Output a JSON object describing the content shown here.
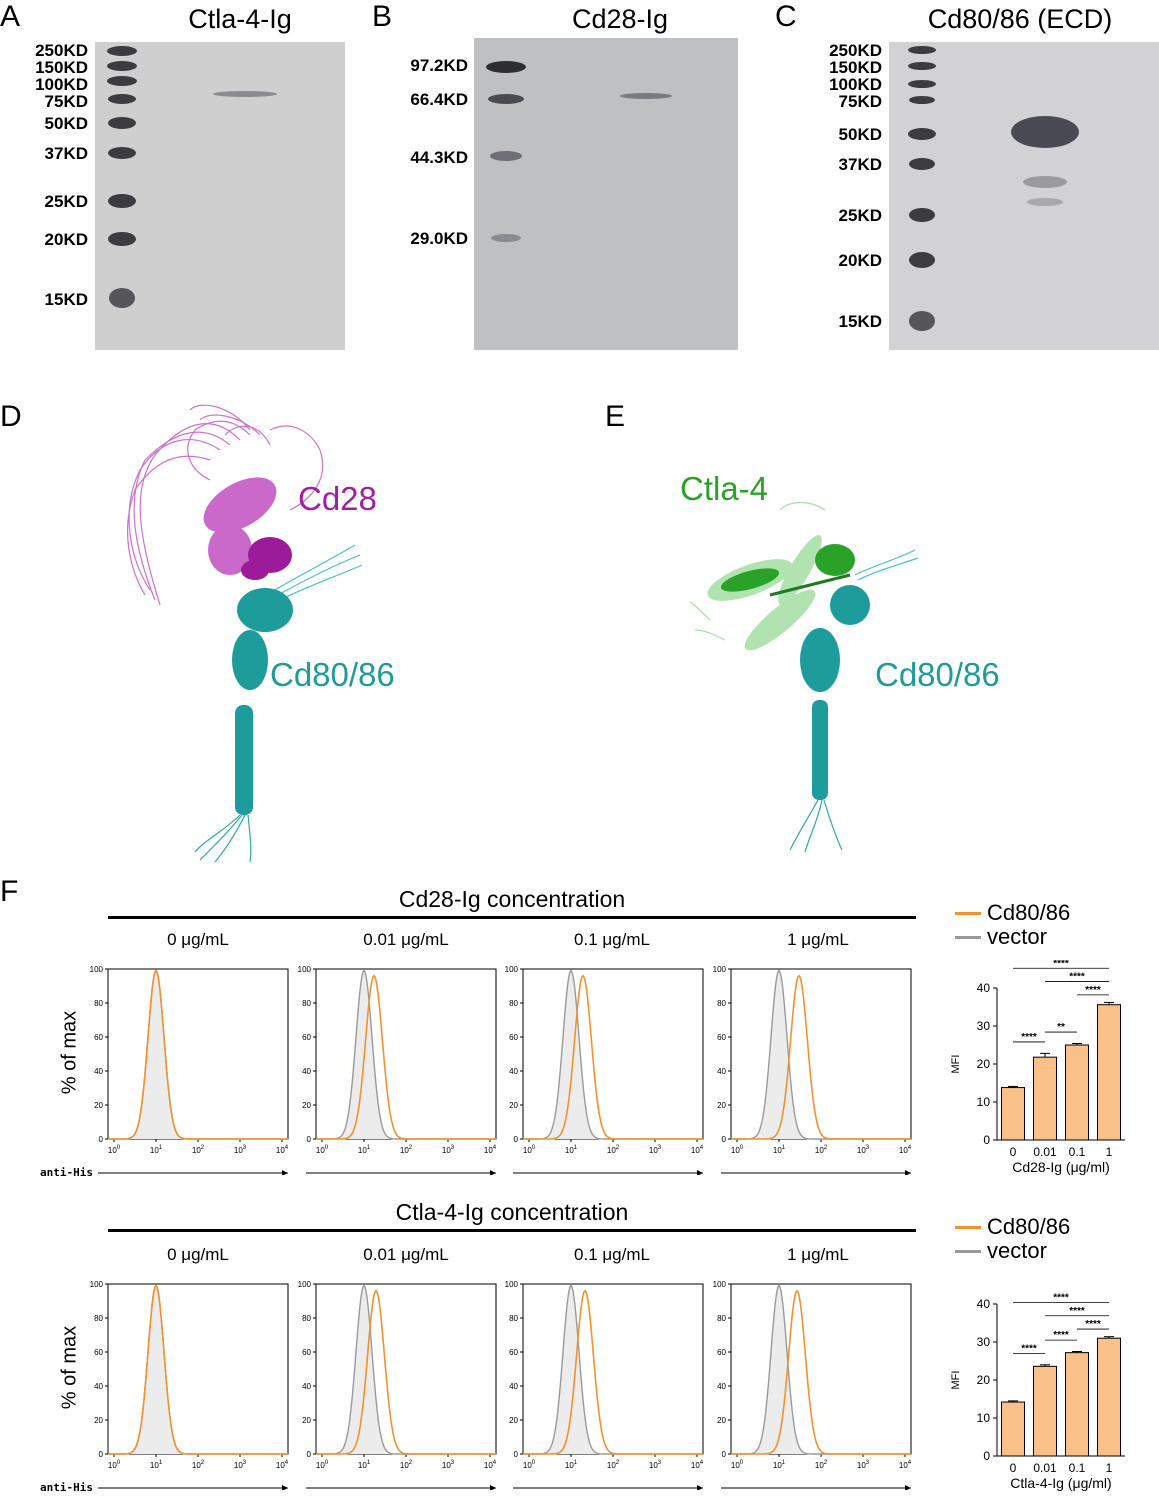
{
  "panels": {
    "A": {
      "label": "A",
      "title": "Ctla-4-Ig",
      "markers": [
        "250KD",
        "150KD",
        "100KD",
        "75KD",
        "50KD",
        "37KD",
        "25KD",
        "20KD",
        "15KD"
      ]
    },
    "B": {
      "label": "B",
      "title": "Cd28-Ig",
      "markers": [
        "97.2KD",
        "66.4KD",
        "44.3KD",
        "29.0KD"
      ]
    },
    "C": {
      "label": "C",
      "title": "Cd80/86 (ECD)",
      "markers": [
        "250KD",
        "150KD",
        "100KD",
        "75KD",
        "50KD",
        "37KD",
        "25KD",
        "20KD",
        "15KD"
      ]
    },
    "D": {
      "label": "D",
      "partner_label": "Cd28",
      "ligand_label": "Cd80/86"
    },
    "E": {
      "label": "E",
      "partner_label": "Ctla-4",
      "ligand_label": "Cd80/86"
    },
    "F": {
      "label": "F",
      "row1_title": "Cd28-Ig concentration",
      "row2_title": "Ctla-4-Ig concentration",
      "concentrations": [
        "0 μg/mL",
        "0.01 μg/mL",
        "0.1 μg/mL",
        "1 μg/mL"
      ],
      "y_axis_label": "% of max",
      "x_axis_label": "anti-His",
      "legend": [
        {
          "label": "Cd80/86",
          "color": "#f0922e"
        },
        {
          "label": "vector",
          "color": "#9a9a9a"
        }
      ],
      "hist_yticks": [
        "0",
        "20",
        "40",
        "60",
        "80",
        "100"
      ]
    }
  },
  "colors": {
    "cd28": "#a21ea2",
    "ctla4": "#2aa22a",
    "cd80": "#1e9b9b",
    "orange": "#f0922e",
    "bar_fill": "#f9c08a",
    "grey": "#9a9a9a"
  },
  "chart_data": [
    {
      "type": "bar",
      "categories": [
        "0",
        "0.01",
        "0.1",
        "1"
      ],
      "values": [
        13.8,
        21.8,
        25.0,
        35.6
      ],
      "errors": [
        0.3,
        1.0,
        0.4,
        0.6
      ],
      "xlabel": "Cd28-Ig (μg/ml)",
      "ylabel": "MFI",
      "ylim": [
        0,
        40
      ],
      "yticks": [
        "0",
        "10",
        "20",
        "30",
        "40"
      ],
      "significance": [
        {
          "pair": [
            0,
            1
          ],
          "label": "****"
        },
        {
          "pair": [
            1,
            2
          ],
          "label": "**"
        },
        {
          "pair": [
            2,
            3
          ],
          "label": "****"
        },
        {
          "pair": [
            1,
            3
          ],
          "label": "****"
        },
        {
          "pair": [
            0,
            3
          ],
          "label": "****"
        }
      ]
    },
    {
      "type": "bar",
      "categories": [
        "0",
        "0.01",
        "0.1",
        "1"
      ],
      "values": [
        14.2,
        23.6,
        27.2,
        31.0
      ],
      "errors": [
        0.3,
        0.4,
        0.3,
        0.4
      ],
      "xlabel": "Ctla-4-Ig (μg/ml)",
      "ylabel": "MFI",
      "ylim": [
        0,
        40
      ],
      "yticks": [
        "0",
        "10",
        "20",
        "30",
        "40"
      ],
      "significance": [
        {
          "pair": [
            0,
            1
          ],
          "label": "****"
        },
        {
          "pair": [
            1,
            2
          ],
          "label": "****"
        },
        {
          "pair": [
            2,
            3
          ],
          "label": "****"
        },
        {
          "pair": [
            1,
            3
          ],
          "label": "****"
        },
        {
          "pair": [
            0,
            3
          ],
          "label": "****"
        }
      ]
    }
  ]
}
